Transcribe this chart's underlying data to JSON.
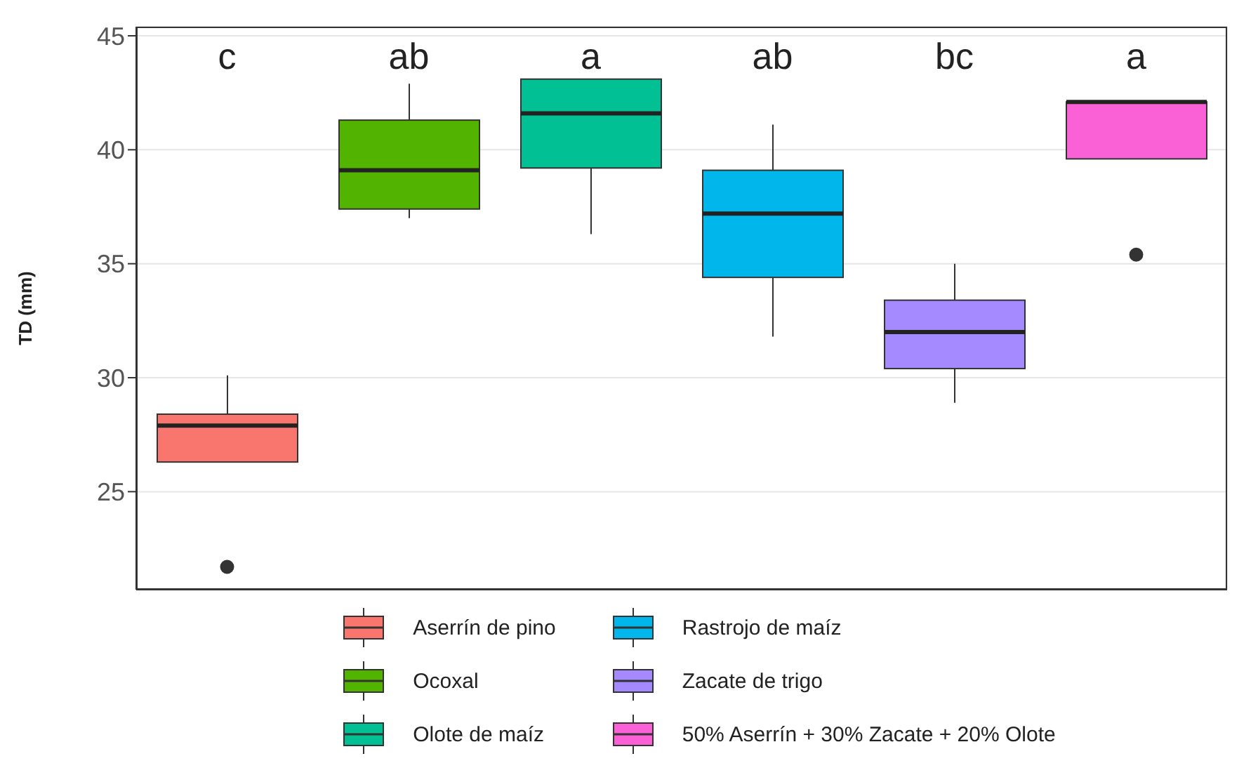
{
  "chart_data": {
    "type": "box",
    "ylabel": "TD (mm)",
    "categories": [
      null,
      null,
      null,
      null,
      null,
      null
    ],
    "ylim": [
      20.7,
      45.4
    ],
    "yticks": [
      25,
      30,
      35,
      40,
      45
    ],
    "grid": true,
    "legend": "bottom",
    "tick_labels": "y",
    "annotations": [
      "c",
      "ab",
      "a",
      "ab",
      "bc",
      "a"
    ],
    "series": [
      {
        "name": "Aserrín de pino",
        "color": "#f8766d",
        "boxes": [
          {
            "low": 26.3,
            "q1": 26.3,
            "median": 27.9,
            "q3": 28.4,
            "high": 30.1,
            "outliers": [
              21.7
            ]
          },
          null,
          null,
          null,
          null,
          null
        ]
      },
      {
        "name": "Ocoxal",
        "color": "#53b400",
        "boxes": [
          null,
          {
            "low": 37.0,
            "q1": 37.4,
            "median": 39.1,
            "q3": 41.3,
            "high": 42.9
          },
          null,
          null,
          null,
          null
        ]
      },
      {
        "name": "Olote de maíz",
        "color": "#00c094",
        "boxes": [
          null,
          null,
          {
            "low": 36.3,
            "q1": 39.2,
            "median": 41.6,
            "q3": 43.1,
            "high": 43.1
          },
          null,
          null,
          null
        ]
      },
      {
        "name": "Rastrojo de maíz",
        "color": "#00b6eb",
        "boxes": [
          null,
          null,
          null,
          {
            "low": 31.8,
            "q1": 34.4,
            "median": 37.2,
            "q3": 39.1,
            "high": 41.1
          },
          null,
          null
        ]
      },
      {
        "name": "Zacate de trigo",
        "color": "#a58aff",
        "boxes": [
          null,
          null,
          null,
          null,
          {
            "low": 28.9,
            "q1": 30.4,
            "median": 32.0,
            "q3": 33.4,
            "high": 35.0
          },
          null
        ]
      },
      {
        "name": "50% Aserrín + 30% Zacate + 20% Olote",
        "color": "#fb61d7",
        "boxes": [
          null,
          null,
          null,
          null,
          null,
          {
            "low": 39.6,
            "q1": 39.6,
            "median": 42.1,
            "q3": 42.1,
            "high": 42.1,
            "outliers": [
              35.4
            ]
          }
        ]
      }
    ]
  }
}
